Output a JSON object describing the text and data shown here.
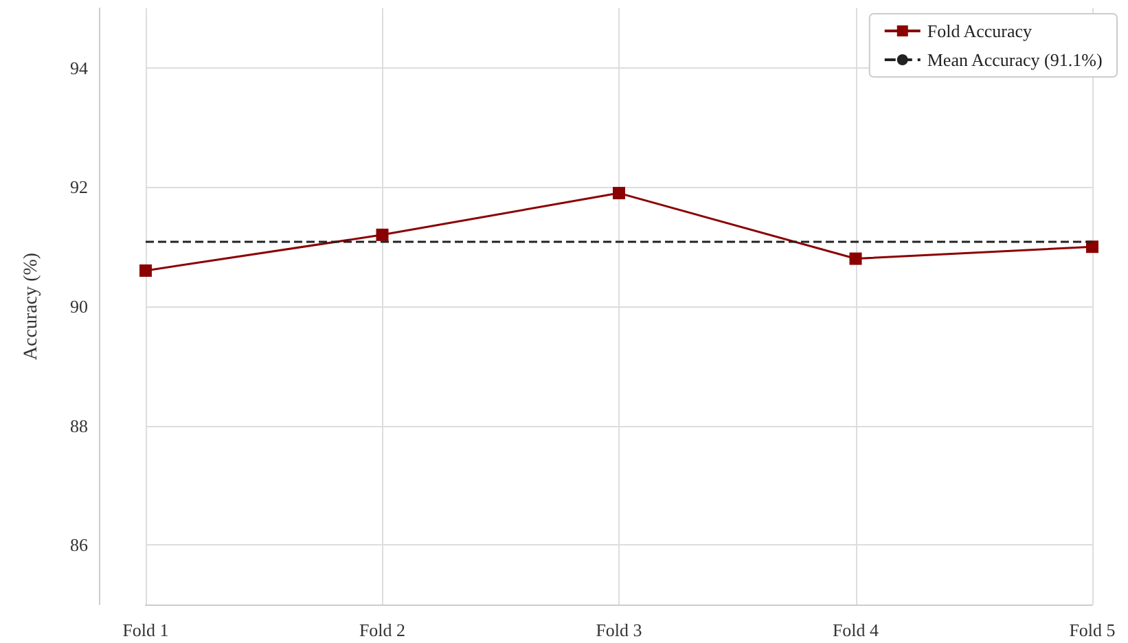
{
  "chart_data": {
    "type": "line",
    "ylabel": "Accuracy (%)",
    "categories": [
      "Fold 1",
      "Fold 2",
      "Fold 3",
      "Fold 4",
      "Fold 5"
    ],
    "series": [
      {
        "name": "Fold Accuracy",
        "color": "#8b0000",
        "values": [
          90.6,
          91.2,
          91.9,
          90.8,
          91.0
        ]
      }
    ],
    "ylim": [
      85,
      95
    ],
    "yticks": [
      86,
      88,
      90,
      92,
      94
    ],
    "grid": true,
    "legend": "top right",
    "marker": "square",
    "line_style": "solid",
    "ref_lines": [
      {
        "axis": "y",
        "value": 91.1,
        "label": "Mean Accuracy (91.1%)",
        "color": "#222222",
        "line_style": "dashed"
      }
    ]
  }
}
